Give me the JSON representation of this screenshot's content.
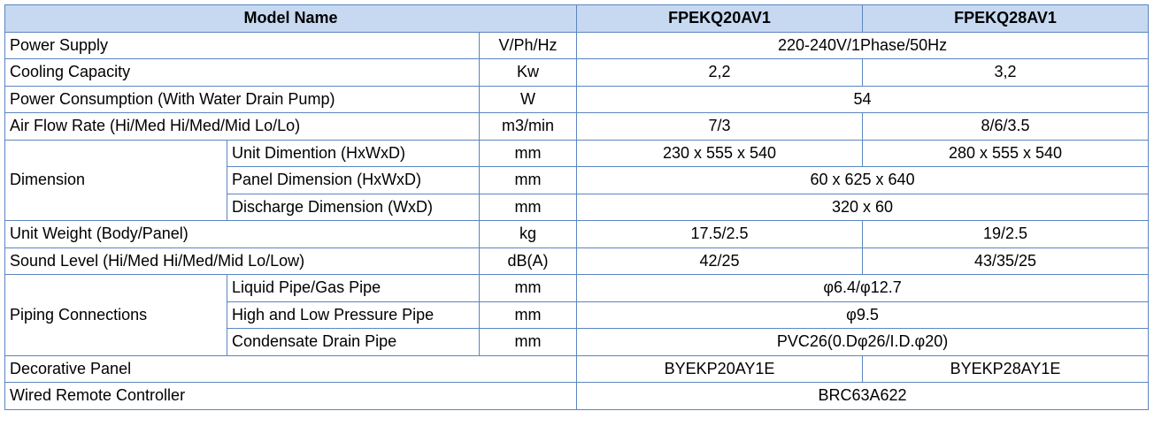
{
  "header": {
    "model_name": "Model Name",
    "model_a": "FPEKQ20AV1",
    "model_b": "FPEKQ28AV1"
  },
  "rows": {
    "power_supply": {
      "label": "Power Supply",
      "unit": "V/Ph/Hz",
      "value": "220-240V/1Phase/50Hz"
    },
    "cooling_capacity": {
      "label": "Cooling Capacity",
      "unit": "Kw",
      "a": "2,2",
      "b": "3,2"
    },
    "power_consumption": {
      "label": "Power Consumption (With Water Drain Pump)",
      "unit": "W",
      "value": "54"
    },
    "air_flow": {
      "label": "Air Flow Rate (Hi/Med Hi/Med/Mid Lo/Lo)",
      "unit": "m3/min",
      "a": "7/3",
      "b": "8/6/3.5"
    },
    "dimension": {
      "label": "Dimension",
      "unit_dim": {
        "label": "Unit Dimention (HxWxD)",
        "unit": "mm",
        "a": "230 x 555 x 540",
        "b": "280 x 555 x 540"
      },
      "panel_dim": {
        "label": "Panel Dimension (HxWxD)",
        "unit": "mm",
        "value": "60 x 625 x 640"
      },
      "discharge_dim": {
        "label": "Discharge Dimension (WxD)",
        "unit": "mm",
        "value": "320 x 60"
      }
    },
    "unit_weight": {
      "label": "Unit Weight (Body/Panel)",
      "unit": "kg",
      "a": "17.5/2.5",
      "b": "19/2.5"
    },
    "sound_level": {
      "label": "Sound Level (Hi/Med Hi/Med/Mid Lo/Low)",
      "unit": "dB(A)",
      "a": "42/25",
      "b": "43/35/25"
    },
    "piping": {
      "label": "Piping Connections",
      "liquid_gas": {
        "label": "Liquid Pipe/Gas Pipe",
        "unit": "mm",
        "value": "φ6.4/φ12.7"
      },
      "high_low": {
        "label": "High and Low Pressure Pipe",
        "unit": "mm",
        "value": "φ9.5"
      },
      "condensate": {
        "label": "Condensate Drain Pipe",
        "unit": "mm",
        "value": "PVC26(0.Dφ26/I.D.φ20)"
      }
    },
    "decorative_panel": {
      "label": "Decorative Panel",
      "a": "BYEKP20AY1E",
      "b": "BYEKP28AY1E"
    },
    "wired_remote": {
      "label": "Wired Remote Controller",
      "value": "BRC63A622"
    }
  }
}
